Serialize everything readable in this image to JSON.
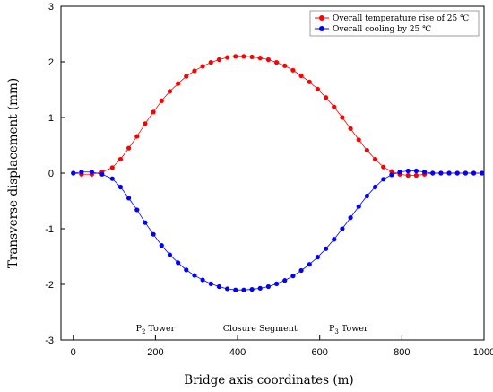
{
  "chart_data": {
    "type": "line",
    "title": "",
    "xlabel": "Bridge axis coordinates (m)",
    "ylabel": "Transverse displacement (mm)",
    "xlim": [
      -30,
      1000
    ],
    "ylim": [
      -3,
      3
    ],
    "xticks": [
      0,
      200,
      400,
      600,
      800,
      1000
    ],
    "yticks": [
      -3,
      -2,
      -1,
      0,
      1,
      2,
      3
    ],
    "grid": false,
    "legend_position": "top-right",
    "annotations": [
      {
        "main": "P",
        "sub": "2",
        "rest": " Tower",
        "x": 200
      },
      {
        "main": "Closure Segment",
        "sub": "",
        "rest": "",
        "x": 455
      },
      {
        "main": "P",
        "sub": "3",
        "rest": " Tower",
        "x": 670
      }
    ],
    "series": [
      {
        "name": "Overall temperature rise of 25 ℃",
        "color": "#ff0000",
        "x": [
          0,
          20,
          45,
          70,
          95,
          115,
          135,
          155,
          175,
          195,
          215,
          235,
          255,
          275,
          295,
          315,
          335,
          355,
          375,
          395,
          415,
          435,
          455,
          475,
          495,
          515,
          535,
          555,
          575,
          595,
          615,
          635,
          655,
          675,
          695,
          715,
          735,
          755,
          775,
          795,
          815,
          835,
          855,
          875,
          895,
          915,
          935,
          955,
          975,
          995
        ],
        "y": [
          0,
          -0.02,
          -0.02,
          0.02,
          0.1,
          0.25,
          0.45,
          0.66,
          0.89,
          1.1,
          1.3,
          1.47,
          1.61,
          1.74,
          1.84,
          1.92,
          1.99,
          2.04,
          2.08,
          2.1,
          2.1,
          2.09,
          2.07,
          2.04,
          1.99,
          1.93,
          1.85,
          1.75,
          1.64,
          1.51,
          1.36,
          1.19,
          1.0,
          0.8,
          0.6,
          0.41,
          0.25,
          0.11,
          0.03,
          -0.02,
          -0.04,
          -0.04,
          -0.02,
          0.0,
          0.0,
          0.0,
          0.0,
          0.0,
          0.0,
          0.0
        ]
      },
      {
        "name": "Overall cooling by 25 ℃",
        "color": "#0000ff",
        "x": [
          0,
          20,
          45,
          70,
          95,
          115,
          135,
          155,
          175,
          195,
          215,
          235,
          255,
          275,
          295,
          315,
          335,
          355,
          375,
          395,
          415,
          435,
          455,
          475,
          495,
          515,
          535,
          555,
          575,
          595,
          615,
          635,
          655,
          675,
          695,
          715,
          735,
          755,
          775,
          795,
          815,
          835,
          855,
          875,
          895,
          915,
          935,
          955,
          975,
          995
        ],
        "y": [
          0,
          0.02,
          0.02,
          -0.02,
          -0.1,
          -0.25,
          -0.45,
          -0.66,
          -0.89,
          -1.1,
          -1.3,
          -1.47,
          -1.61,
          -1.74,
          -1.84,
          -1.92,
          -1.99,
          -2.04,
          -2.08,
          -2.1,
          -2.1,
          -2.09,
          -2.07,
          -2.04,
          -1.99,
          -1.93,
          -1.85,
          -1.75,
          -1.64,
          -1.51,
          -1.36,
          -1.19,
          -1.0,
          -0.8,
          -0.6,
          -0.41,
          -0.25,
          -0.11,
          -0.03,
          0.02,
          0.04,
          0.04,
          0.02,
          0.0,
          0.0,
          0.0,
          0.0,
          0.0,
          0.0,
          0.0
        ]
      }
    ]
  }
}
